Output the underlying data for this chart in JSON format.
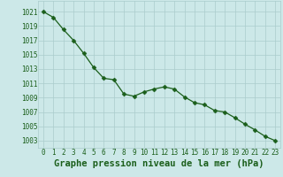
{
  "x": [
    0,
    1,
    2,
    3,
    4,
    5,
    6,
    7,
    8,
    9,
    10,
    11,
    12,
    13,
    14,
    15,
    16,
    17,
    18,
    19,
    20,
    21,
    22,
    23
  ],
  "y": [
    1021.0,
    1020.2,
    1018.5,
    1017.0,
    1015.2,
    1013.2,
    1011.7,
    1011.5,
    1009.5,
    1009.2,
    1009.8,
    1010.2,
    1010.5,
    1010.2,
    1009.1,
    1008.3,
    1008.0,
    1007.2,
    1007.0,
    1006.2,
    1005.3,
    1004.5,
    1003.6,
    1003.0
  ],
  "line_color": "#1a5e1a",
  "marker": "D",
  "marker_size": 2.5,
  "bg_color": "#cce8e8",
  "grid_color": "#aacccc",
  "xlabel": "Graphe pression niveau de la mer (hPa)",
  "xlabel_fontsize": 7.5,
  "xlabel_color": "#1a5e1a",
  "ytick_labels": [
    1003,
    1005,
    1007,
    1009,
    1011,
    1013,
    1015,
    1017,
    1019,
    1021
  ],
  "ylim": [
    1002.0,
    1022.5
  ],
  "xlim": [
    -0.5,
    23.5
  ],
  "xtick_fontsize": 5.5,
  "ytick_fontsize": 5.5,
  "tick_color": "#1a5e1a",
  "line_width": 0.9
}
